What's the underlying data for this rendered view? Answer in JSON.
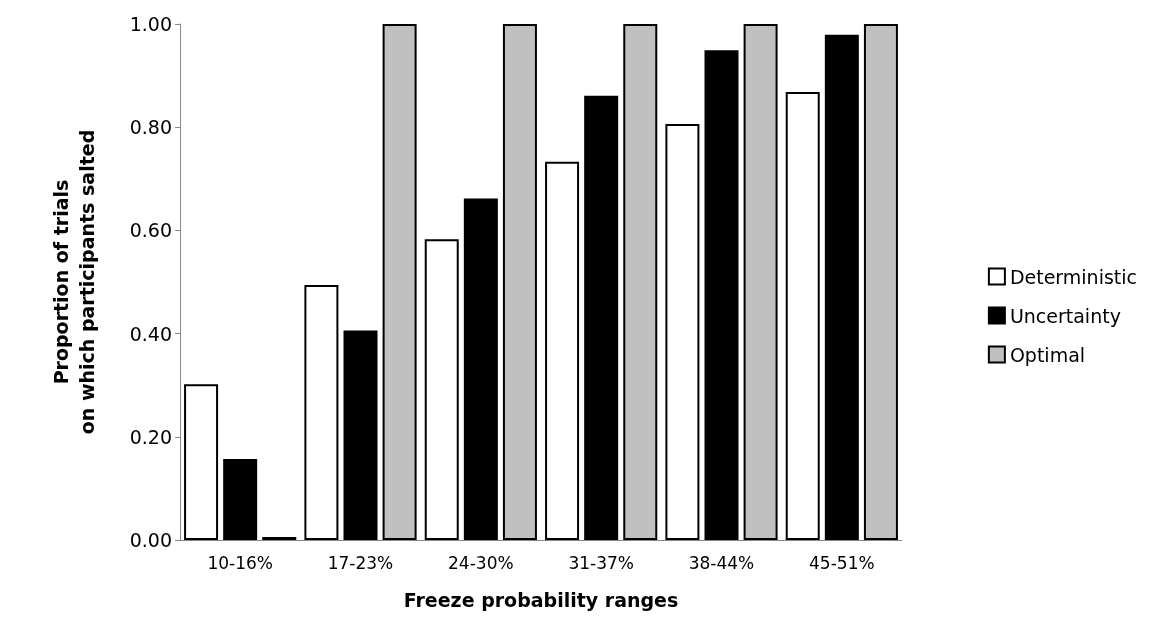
{
  "chart_data": {
    "type": "bar",
    "xlabel": "Freeze probability ranges",
    "ylabel": "Proportion of trials\non which participants salted",
    "categories": [
      "10-16%",
      "17-23%",
      "24-30%",
      "31-37%",
      "38-44%",
      "45-51%"
    ],
    "series": [
      {
        "name": "Deterministic",
        "color": "#ffffff",
        "values": [
          0.302,
          0.494,
          0.583,
          0.733,
          0.806,
          0.868
        ]
      },
      {
        "name": "Uncertainty",
        "color": "#000000",
        "values": [
          0.157,
          0.406,
          0.662,
          0.861,
          0.949,
          0.979
        ]
      },
      {
        "name": "Optimal",
        "color": "#c0c0c0",
        "values": [
          0.006,
          1.0,
          1.0,
          1.0,
          1.0,
          1.0
        ]
      }
    ],
    "ylim": [
      0,
      1
    ],
    "yticks": [
      {
        "value": 0,
        "label": "0.00"
      },
      {
        "value": 0.2,
        "label": "0.20"
      },
      {
        "value": 0.4,
        "label": "0.40"
      },
      {
        "value": 0.6,
        "label": "0.60"
      },
      {
        "value": 0.8,
        "label": "0.80"
      },
      {
        "value": 1,
        "label": "1.00"
      }
    ],
    "grid": false,
    "legend": "right"
  }
}
